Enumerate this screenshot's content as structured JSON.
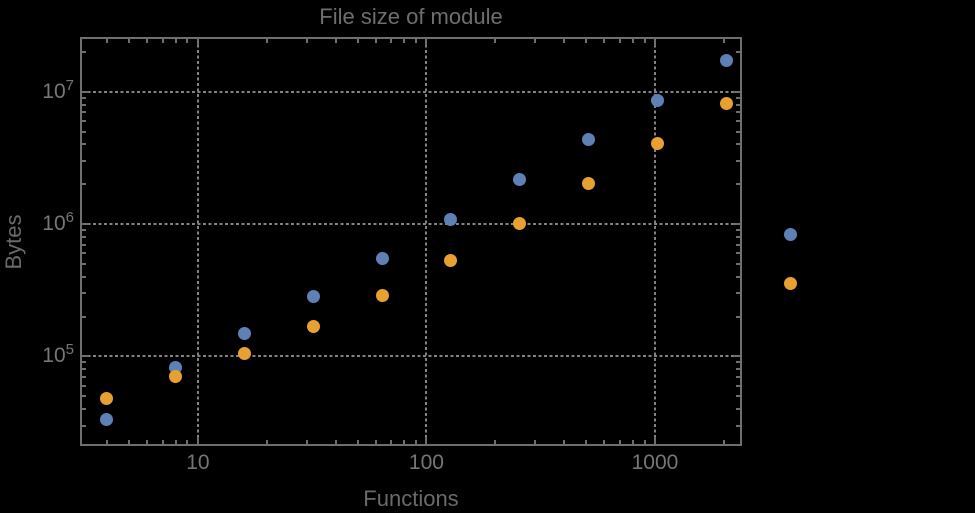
{
  "style": {
    "background": "#000000",
    "frame_color": "#6f6f6f",
    "grid_color": "#828282",
    "title_color": "#6e6e6e",
    "axis_label_color": "#6a6a6a",
    "tick_label_color": "#767676"
  },
  "chart_data": {
    "type": "scatter",
    "title": "File size of module",
    "xlabel": "Functions",
    "ylabel": "Bytes",
    "x_scale": "log",
    "y_scale": "log",
    "grid": "dotted at decades",
    "legend": "none",
    "x_range": [
      3.11,
      2355
    ],
    "y_range": [
      21800,
      25000000
    ],
    "x_ticks": [
      10,
      100,
      1000
    ],
    "x_tick_labels": [
      "10",
      "100",
      "1000"
    ],
    "y_ticks": [
      100000,
      1000000,
      10000000
    ],
    "y_tick_labels": [
      "10^5",
      "10^6",
      "10^7"
    ],
    "x": [
      4,
      8,
      16,
      32,
      64,
      128,
      256,
      512,
      1024,
      2048,
      3900
    ],
    "series": [
      {
        "name": "blue",
        "color": "#5e81b5",
        "values": [
          33500,
          83000,
          148000,
          286000,
          551000,
          1090000,
          2180000,
          4360000,
          8600000,
          17100000,
          840000
        ]
      },
      {
        "name": "orange",
        "color": "#e8a030",
        "values": [
          48000,
          70000,
          105000,
          167000,
          291000,
          528000,
          1010000,
          2030000,
          4040000,
          8150000,
          356000
        ]
      }
    ]
  }
}
